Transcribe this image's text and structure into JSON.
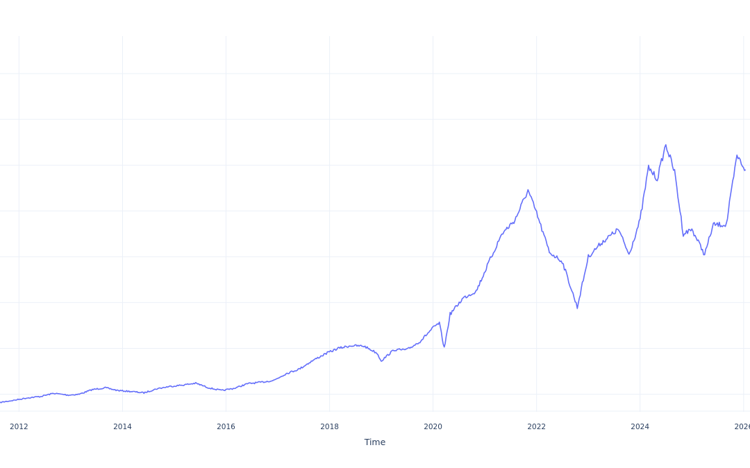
{
  "chart_data": {
    "type": "line",
    "title": "",
    "xlabel": "Time",
    "ylabel": "",
    "x_ticks": [
      "2012",
      "2014",
      "2016",
      "2018",
      "2020",
      "2022",
      "2024",
      "2026"
    ],
    "xlim": [
      "2011-08-20",
      "2026-02-15"
    ],
    "ylim": [
      -0.4,
      8.0
    ],
    "y_gridlines": [
      0,
      1,
      2,
      3,
      4,
      5,
      6,
      7,
      8
    ],
    "grid": true,
    "legend": "none",
    "colors": {
      "line": "#636efa",
      "grid": "#ebf0f8",
      "text": "#2a3f5f",
      "background": "#ffffff"
    },
    "series": [
      {
        "values": [
          [
            "2011-08-20",
            -0.18
          ],
          [
            "2011-12-01",
            -0.13
          ],
          [
            "2012-03-01",
            -0.08
          ],
          [
            "2012-06-01",
            -0.05
          ],
          [
            "2012-09-01",
            0.02
          ],
          [
            "2012-12-15",
            -0.02
          ],
          [
            "2013-03-01",
            0.0
          ],
          [
            "2013-06-01",
            0.1
          ],
          [
            "2013-09-01",
            0.14
          ],
          [
            "2013-12-01",
            0.08
          ],
          [
            "2014-03-01",
            0.06
          ],
          [
            "2014-06-01",
            0.03
          ],
          [
            "2014-09-01",
            0.12
          ],
          [
            "2014-12-01",
            0.17
          ],
          [
            "2015-03-01",
            0.2
          ],
          [
            "2015-06-01",
            0.24
          ],
          [
            "2015-09-01",
            0.14
          ],
          [
            "2015-12-01",
            0.08
          ],
          [
            "2016-03-01",
            0.13
          ],
          [
            "2016-06-01",
            0.23
          ],
          [
            "2016-09-01",
            0.26
          ],
          [
            "2016-12-01",
            0.3
          ],
          [
            "2017-03-01",
            0.45
          ],
          [
            "2017-06-01",
            0.55
          ],
          [
            "2017-09-01",
            0.73
          ],
          [
            "2017-12-01",
            0.88
          ],
          [
            "2018-03-01",
            1.0
          ],
          [
            "2018-06-01",
            1.06
          ],
          [
            "2018-09-01",
            1.05
          ],
          [
            "2018-12-01",
            0.9
          ],
          [
            "2019-01-01",
            0.73
          ],
          [
            "2019-04-01",
            0.97
          ],
          [
            "2019-07-01",
            0.97
          ],
          [
            "2019-10-01",
            1.15
          ],
          [
            "2020-01-01",
            1.45
          ],
          [
            "2020-02-15",
            1.55
          ],
          [
            "2020-03-20",
            1.0
          ],
          [
            "2020-05-01",
            1.75
          ],
          [
            "2020-08-01",
            2.1
          ],
          [
            "2020-11-01",
            2.25
          ],
          [
            "2021-02-01",
            2.9
          ],
          [
            "2021-05-01",
            3.5
          ],
          [
            "2021-08-01",
            3.8
          ],
          [
            "2021-11-01",
            4.45
          ],
          [
            "2022-01-01",
            3.95
          ],
          [
            "2022-04-01",
            3.1
          ],
          [
            "2022-07-01",
            2.9
          ],
          [
            "2022-10-15",
            1.9
          ],
          [
            "2023-01-01",
            3.0
          ],
          [
            "2023-04-01",
            3.3
          ],
          [
            "2023-08-01",
            3.6
          ],
          [
            "2023-10-15",
            3.05
          ],
          [
            "2024-01-01",
            3.8
          ],
          [
            "2024-03-01",
            4.95
          ],
          [
            "2024-05-01",
            4.7
          ],
          [
            "2024-07-01",
            5.45
          ],
          [
            "2024-09-01",
            4.85
          ],
          [
            "2024-11-01",
            3.5
          ],
          [
            "2025-01-01",
            3.6
          ],
          [
            "2025-04-01",
            3.05
          ],
          [
            "2025-06-01",
            3.7
          ],
          [
            "2025-09-01",
            3.7
          ],
          [
            "2025-11-15",
            5.2
          ],
          [
            "2026-01-15",
            4.9
          ]
        ]
      }
    ]
  }
}
